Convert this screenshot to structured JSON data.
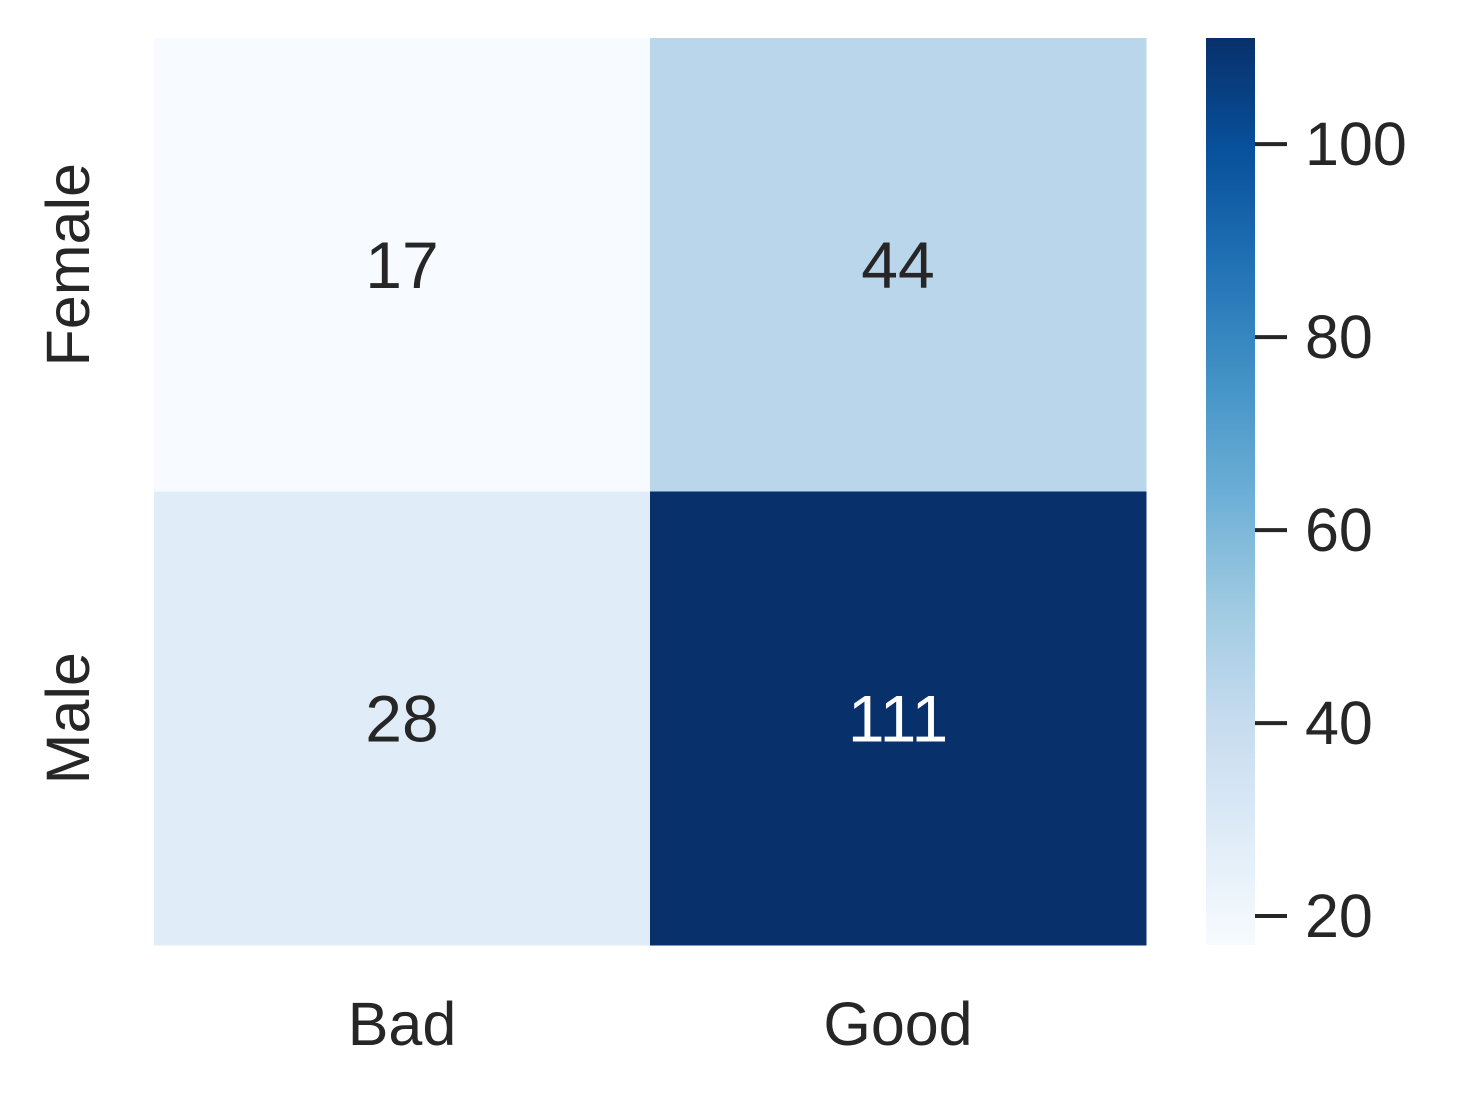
{
  "chart_data": {
    "type": "heatmap",
    "title": "",
    "xlabel": "",
    "ylabel": "",
    "x_categories": [
      "Bad",
      "Good"
    ],
    "y_categories": [
      "Female",
      "Male"
    ],
    "values": [
      [
        17,
        44
      ],
      [
        28,
        111
      ]
    ],
    "annotations": true,
    "colormap": "Blues",
    "colorbar": {
      "min": 17,
      "max": 111,
      "ticks": [
        20,
        40,
        60,
        80,
        100
      ],
      "tick_labels": [
        "20",
        "40",
        "60",
        "80",
        "100"
      ],
      "placement": "right"
    },
    "grid": false
  }
}
